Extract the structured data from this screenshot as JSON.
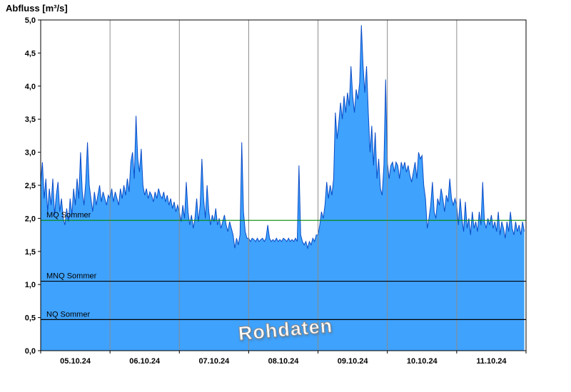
{
  "chart_data": {
    "type": "area",
    "title": "Abfluss [m³/s]",
    "watermark": "Rohdaten",
    "x_axis": {
      "tick_labels": [
        "05.10.24",
        "06.10.24",
        "07.10.24",
        "08.10.24",
        "09.10.24",
        "10.10.24",
        "11.10.24"
      ],
      "range_days": [
        0,
        7
      ],
      "gridlines_at": [
        1,
        2,
        3,
        4,
        5,
        6
      ]
    },
    "y_axis": {
      "ticks": [
        0,
        0.5,
        1,
        1.5,
        2,
        2.5,
        3,
        3.5,
        4,
        4.5,
        5
      ],
      "tick_labels": [
        "0,0",
        "0,5",
        "1,0",
        "1,5",
        "2,0",
        "2,5",
        "3,0",
        "3,5",
        "4,0",
        "4,5",
        "5,0"
      ],
      "range": [
        0,
        5
      ]
    },
    "reference_lines": [
      {
        "label": "MQ Sommer",
        "value": 1.97,
        "color": "#008800"
      },
      {
        "label": "MNQ Sommer",
        "value": 1.05,
        "color": "#000000"
      },
      {
        "label": "NQ Sommer",
        "value": 0.47,
        "color": "#000000"
      }
    ],
    "colors": {
      "fill": "#3fa2fc",
      "line": "#0a4cc8",
      "grid": "#8c8c8c",
      "border": "#000000"
    },
    "series": [
      {
        "name": "Rohdaten",
        "x_start": 0,
        "x_step": 0.025,
        "values": [
          2.55,
          2.85,
          2.3,
          2.6,
          2.1,
          2.45,
          2.2,
          2.6,
          2.05,
          2.35,
          2.55,
          2.1,
          2.3,
          2.0,
          1.9,
          2.15,
          1.95,
          2.3,
          2.05,
          2.45,
          2.2,
          2.6,
          2.3,
          3.0,
          2.4,
          2.2,
          2.55,
          3.15,
          2.5,
          2.3,
          2.1,
          2.4,
          2.2,
          2.35,
          2.5,
          2.25,
          2.4,
          2.3,
          2.2,
          2.35,
          2.3,
          2.45,
          2.25,
          2.4,
          2.3,
          2.2,
          2.45,
          2.3,
          2.5,
          2.35,
          2.6,
          2.4,
          2.85,
          3.0,
          2.6,
          3.55,
          2.9,
          2.7,
          3.05,
          2.5,
          2.35,
          2.45,
          2.3,
          2.4,
          2.35,
          2.25,
          2.4,
          2.3,
          2.45,
          2.35,
          2.3,
          2.4,
          2.25,
          2.35,
          2.2,
          2.3,
          2.15,
          2.25,
          2.1,
          2.2,
          2.1,
          1.95,
          2.2,
          2.0,
          2.55,
          2.1,
          1.9,
          2.05,
          1.85,
          2.0,
          2.3,
          1.95,
          2.2,
          2.9,
          2.3,
          2.0,
          2.5,
          2.1,
          1.9,
          2.05,
          1.95,
          2.15,
          1.9,
          2.0,
          1.85,
          1.95,
          2.05,
          1.9,
          1.8,
          1.95,
          1.85,
          1.75,
          1.55,
          1.7,
          1.6,
          1.75,
          3.15,
          2.1,
          1.8,
          1.7,
          1.7,
          1.65,
          1.7,
          1.68,
          1.65,
          1.7,
          1.65,
          1.68,
          1.7,
          1.65,
          1.7,
          1.9,
          1.7,
          1.65,
          1.68,
          1.65,
          1.7,
          1.65,
          1.68,
          1.65,
          1.7,
          1.68,
          1.65,
          1.7,
          1.65,
          1.68,
          1.65,
          1.7,
          1.65,
          2.8,
          1.75,
          1.65,
          1.6,
          1.65,
          1.55,
          1.65,
          1.6,
          1.7,
          1.65,
          1.75,
          1.75,
          1.9,
          2.1,
          2.0,
          2.2,
          2.55,
          2.3,
          2.5,
          2.35,
          2.6,
          3.6,
          3.2,
          3.45,
          3.75,
          3.5,
          3.85,
          3.6,
          3.9,
          3.7,
          4.3,
          3.85,
          3.6,
          3.95,
          3.8,
          4.05,
          4.92,
          4.3,
          3.9,
          4.3,
          3.6,
          3.0,
          3.4,
          2.8,
          3.3,
          2.6,
          2.9,
          2.45,
          2.35,
          2.8,
          4.1,
          2.85,
          2.6,
          2.8,
          2.85,
          2.7,
          2.85,
          2.8,
          2.6,
          2.85,
          2.75,
          2.85,
          2.7,
          2.8,
          2.65,
          2.55,
          2.7,
          2.85,
          2.6,
          3.0,
          2.9,
          2.95,
          2.5,
          2.3,
          1.85,
          2.0,
          2.2,
          2.55,
          2.1,
          2.0,
          2.3,
          2.2,
          2.45,
          2.3,
          2.1,
          2.35,
          2.25,
          2.6,
          2.3,
          2.2,
          2.3,
          2.2,
          1.9,
          2.3,
          2.0,
          1.8,
          2.25,
          1.85,
          2.0,
          1.75,
          2.1,
          1.85,
          1.95,
          1.8,
          2.1,
          1.9,
          2.55,
          1.95,
          1.85,
          2.0,
          1.9,
          2.05,
          1.85,
          1.95,
          1.8,
          2.1,
          1.75,
          1.95,
          1.85,
          1.7,
          1.95,
          1.8,
          2.1,
          1.85,
          1.75,
          1.95,
          1.8,
          1.9,
          1.75,
          1.95,
          1.8
        ]
      }
    ]
  }
}
